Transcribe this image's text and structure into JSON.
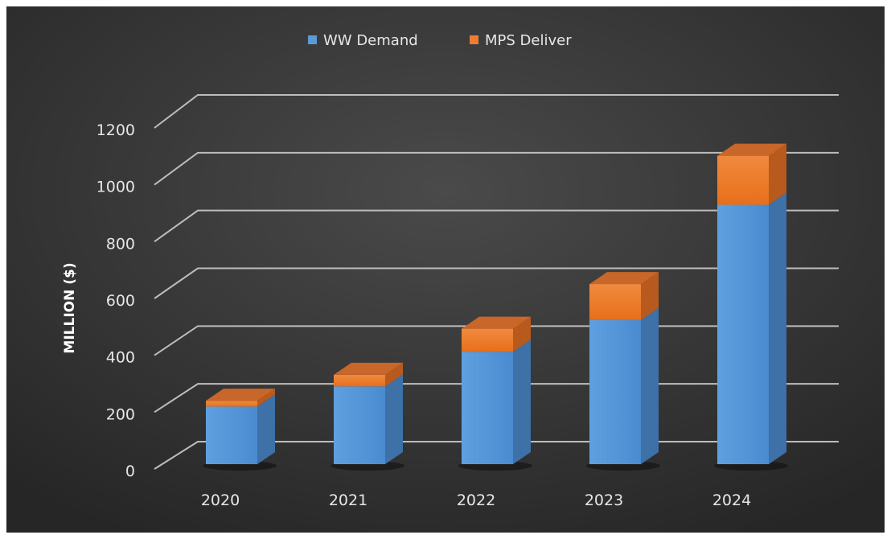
{
  "chart_data": {
    "type": "bar",
    "stacked": true,
    "three_d": true,
    "title": "",
    "xlabel": "",
    "ylabel": "MILLION ($)",
    "ylim": [
      0,
      1200
    ],
    "yticks": [
      0,
      200,
      400,
      600,
      800,
      1000,
      1200
    ],
    "grid": true,
    "legend_position": "top",
    "categories": [
      "2020",
      "2021",
      "2022",
      "2023",
      "2024"
    ],
    "series": [
      {
        "name": "WW Demand",
        "color": "#5b9bd5",
        "values": [
          200,
          270,
          390,
          500,
          900
        ]
      },
      {
        "name": "MPS Deliver",
        "color": "#ed7d31",
        "values": [
          20,
          40,
          80,
          125,
          170
        ]
      }
    ],
    "background": "#3a3a3a"
  }
}
